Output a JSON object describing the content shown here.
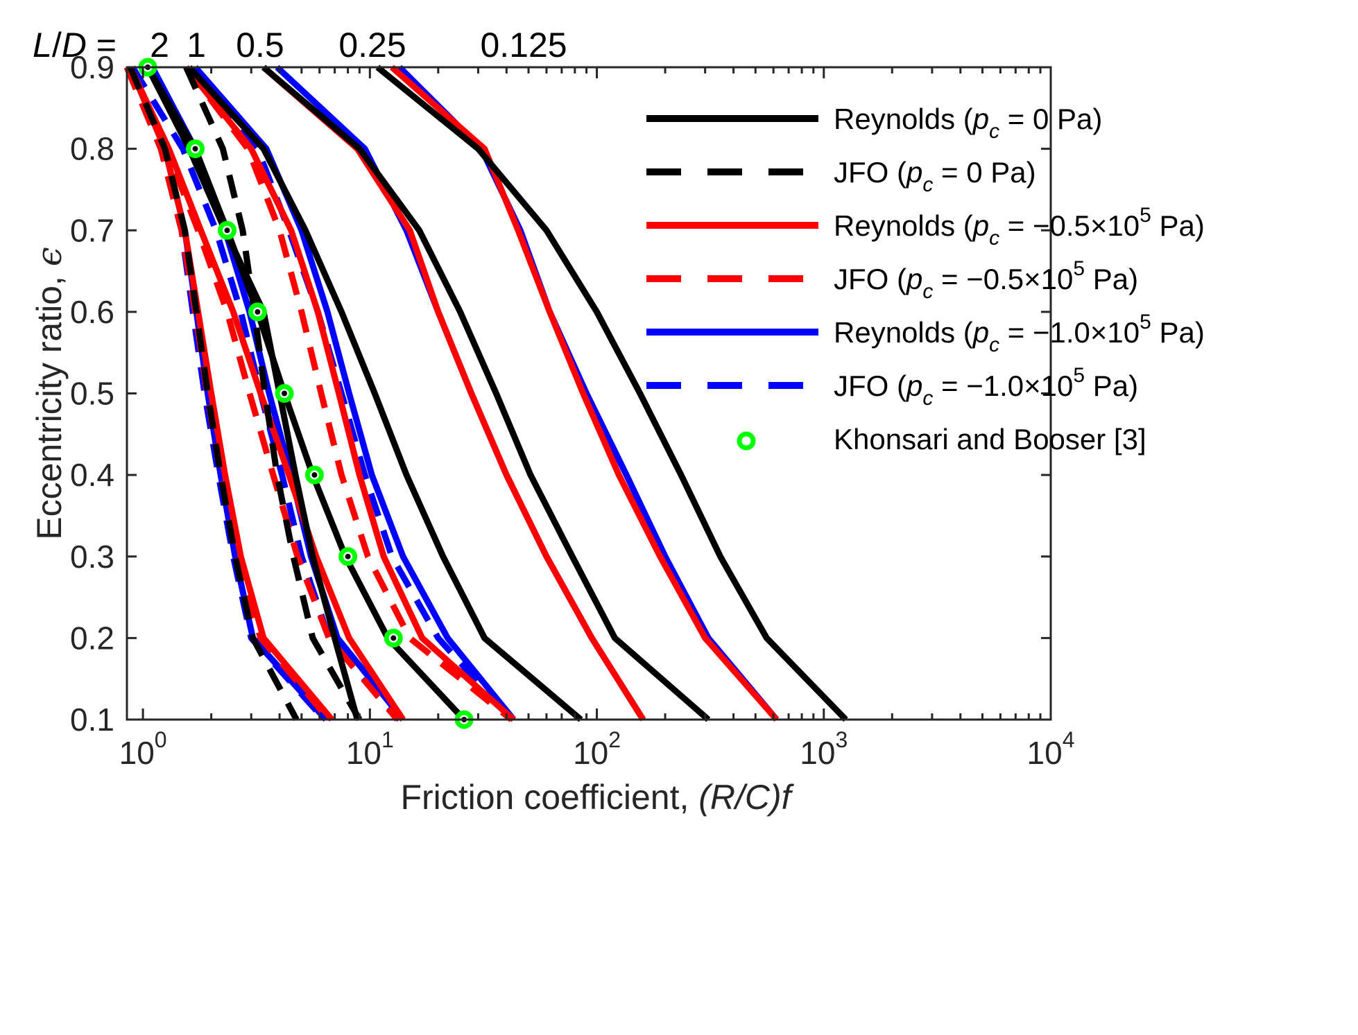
{
  "chart_data": {
    "type": "line",
    "xscale": "log",
    "xlim": [
      0.85,
      10000
    ],
    "ylim": [
      0.1,
      0.9
    ],
    "xlabel": "Friction coefficient, ",
    "xlabel_italic": "(R/C)f",
    "ylabel": "Eccentricity ratio, ",
    "ylabel_symbol": "ϵ",
    "x_tick_labels": [
      {
        "base": "10",
        "exp": "0",
        "value": 1
      },
      {
        "base": "10",
        "exp": "1",
        "value": 10
      },
      {
        "base": "10",
        "exp": "2",
        "value": 100
      },
      {
        "base": "10",
        "exp": "3",
        "value": 1000
      },
      {
        "base": "10",
        "exp": "4",
        "value": 10000
      }
    ],
    "y_ticks": [
      0.1,
      0.2,
      0.3,
      0.4,
      0.5,
      0.6,
      0.7,
      0.8,
      0.9
    ],
    "y_tick_labels": [
      "0.1",
      "0.2",
      "0.3",
      "0.4",
      "0.5",
      "0.6",
      "0.7",
      "0.8",
      "0.9"
    ],
    "top_labels": {
      "prefix_italic_1": "L",
      "prefix_sep": "/",
      "prefix_italic_2": "D",
      "prefix_eq": " = ",
      "values": [
        {
          "text": "2",
          "ld": 2
        },
        {
          "text": "1",
          "ld": 1
        },
        {
          "text": "0.5",
          "ld": 0.5
        },
        {
          "text": "0.25",
          "ld": 0.25
        },
        {
          "text": "0.125",
          "ld": 0.125
        }
      ]
    },
    "eps": [
      0.9,
      0.8,
      0.7,
      0.6,
      0.5,
      0.4,
      0.3,
      0.2,
      0.1
    ],
    "series": [
      {
        "name": "Reynolds (pc = 0 Pa)",
        "color": "#000000",
        "dashed": false,
        "ld": 2,
        "x": [
          1.05,
          1.6,
          2.3,
          3.4,
          4.0,
          4.7,
          5.6,
          7.0,
          8.8
        ]
      },
      {
        "name": "Reynolds (pc = 0 Pa)",
        "color": "#000000",
        "dashed": false,
        "ld": 1,
        "x": [
          1.05,
          1.7,
          2.35,
          3.2,
          4.2,
          5.6,
          7.8,
          12.0,
          26.0
        ]
      },
      {
        "name": "Reynolds (pc = 0 Pa)",
        "color": "#000000",
        "dashed": false,
        "ld": 0.5,
        "x": [
          1.6,
          3.4,
          5.2,
          7.5,
          10.5,
          14.5,
          21.0,
          32.0,
          85.0
        ]
      },
      {
        "name": "Reynolds (pc = 0 Pa)",
        "color": "#000000",
        "dashed": false,
        "ld": 0.25,
        "x": [
          3.4,
          9.0,
          16.5,
          25.0,
          36.0,
          51.0,
          78.0,
          120.0,
          310.0
        ]
      },
      {
        "name": "Reynolds (pc = 0 Pa)",
        "color": "#000000",
        "dashed": false,
        "ld": 0.125,
        "x": [
          10.8,
          30.0,
          60.0,
          100.0,
          155.0,
          235.0,
          350.0,
          560.0,
          1250.0
        ]
      },
      {
        "name": "JFO (pc = 0 Pa)",
        "color": "#000000",
        "dashed": true,
        "ld": 2,
        "x": [
          0.88,
          1.25,
          1.53,
          1.72,
          1.93,
          2.2,
          2.55,
          3.05,
          4.75
        ]
      },
      {
        "name": "JFO (pc = 0 Pa)",
        "color": "#000000",
        "dashed": true,
        "ld": 0.5,
        "x": [
          1.55,
          2.25,
          2.75,
          3.1,
          3.45,
          3.9,
          4.6,
          5.6,
          9.0
        ]
      },
      {
        "name": "Reynolds (pc = −0.5×10^5 Pa)",
        "color": "#ff0000",
        "dashed": false,
        "ld": 2,
        "x": [
          0.88,
          1.25,
          1.53,
          1.75,
          2.0,
          2.3,
          2.7,
          3.4,
          6.8
        ]
      },
      {
        "name": "Reynolds (pc = −0.5×10^5 Pa)",
        "color": "#ff0000",
        "dashed": false,
        "ld": 1,
        "x": [
          0.88,
          1.3,
          1.8,
          2.5,
          3.3,
          4.4,
          5.8,
          8.1,
          14.0
        ]
      },
      {
        "name": "Reynolds (pc = −0.5×10^5 Pa)",
        "color": "#ff0000",
        "dashed": false,
        "ld": 0.5,
        "x": [
          1.55,
          3.0,
          4.5,
          5.9,
          7.3,
          9.0,
          11.5,
          17.0,
          43.0
        ]
      },
      {
        "name": "Reynolds (pc = −0.5×10^5 Pa)",
        "color": "#ff0000",
        "dashed": false,
        "ld": 0.25,
        "x": [
          3.4,
          8.8,
          15.0,
          20.0,
          28.0,
          40.0,
          60.0,
          95.0,
          160.0
        ]
      },
      {
        "name": "Reynolds (pc = −0.5×10^5 Pa)",
        "color": "#ff0000",
        "dashed": false,
        "ld": 0.125,
        "x": [
          12.5,
          32.0,
          45.0,
          62.0,
          87.0,
          125.0,
          190.0,
          300.0,
          620.0
        ]
      },
      {
        "name": "JFO (pc = −0.5×10^5 Pa)",
        "color": "#ff0000",
        "dashed": true,
        "ld": 2,
        "x": [
          0.85,
          1.2,
          1.48,
          1.7,
          1.92,
          2.2,
          2.6,
          3.3,
          6.6
        ]
      },
      {
        "name": "JFO (pc = −0.5×10^5 Pa)",
        "color": "#ff0000",
        "dashed": true,
        "ld": 1,
        "x": [
          0.85,
          1.27,
          1.75,
          2.35,
          2.95,
          3.75,
          4.8,
          6.6,
          13.2
        ]
      },
      {
        "name": "JFO (pc = −0.5×10^5 Pa)",
        "color": "#ff0000",
        "dashed": true,
        "ld": 0.5,
        "x": [
          1.55,
          2.9,
          4.0,
          5.0,
          6.1,
          7.5,
          9.8,
          15.0,
          42.0
        ]
      },
      {
        "name": "Reynolds (pc = −1.0×10^5 Pa)",
        "color": "#0000ff",
        "dashed": false,
        "ld": 2,
        "x": [
          0.88,
          1.25,
          1.53,
          1.72,
          1.93,
          2.2,
          2.55,
          3.05,
          6.4
        ]
      },
      {
        "name": "Reynolds (pc = −1.0×10^5 Pa)",
        "color": "#0000ff",
        "dashed": false,
        "ld": 1,
        "x": [
          1.1,
          1.7,
          2.3,
          2.95,
          3.6,
          4.5,
          5.5,
          7.2,
          14.0
        ]
      },
      {
        "name": "Reynolds (pc = −1.0×10^5 Pa)",
        "color": "#0000ff",
        "dashed": false,
        "ld": 0.5,
        "x": [
          1.7,
          3.5,
          5.0,
          6.5,
          8.1,
          10.2,
          14.0,
          22.0,
          43.0
        ]
      },
      {
        "name": "Reynolds (pc = −1.0×10^5 Pa)",
        "color": "#0000ff",
        "dashed": false,
        "ld": 0.25,
        "x": [
          3.9,
          9.5,
          14.5,
          20.0,
          28.0,
          40.0,
          60.0,
          95.0,
          160.0
        ]
      },
      {
        "name": "Reynolds (pc = −1.0×10^5 Pa)",
        "color": "#0000ff",
        "dashed": false,
        "ld": 0.125,
        "x": [
          13.5,
          31.0,
          46.0,
          62.0,
          90.0,
          135.0,
          200.0,
          310.0,
          620.0
        ]
      },
      {
        "name": "JFO (pc = −1.0×10^5 Pa)",
        "color": "#0000ff",
        "dashed": true,
        "ld": 2,
        "x": [
          0.85,
          1.2,
          1.48,
          1.66,
          1.87,
          2.15,
          2.5,
          3.0,
          6.3
        ]
      },
      {
        "name": "JFO (pc = −1.0×10^5 Pa)",
        "color": "#0000ff",
        "dashed": true,
        "ld": 1,
        "x": [
          0.9,
          1.5,
          2.1,
          2.7,
          3.3,
          4.1,
          5.0,
          6.6,
          13.5
        ]
      },
      {
        "name": "JFO (pc = −1.0×10^5 Pa)",
        "color": "#0000ff",
        "dashed": true,
        "ld": 0.5,
        "x": [
          1.7,
          3.2,
          4.4,
          5.9,
          7.5,
          9.5,
          12.5,
          20.0,
          42.0
        ]
      }
    ],
    "reference_points": {
      "name": "Khonsari and Booser [3]",
      "marker_color": "#00ff00",
      "x": [
        1.05,
        1.7,
        2.35,
        3.2,
        4.2,
        5.7,
        8.0,
        12.7,
        26.0
      ],
      "y": [
        0.9,
        0.8,
        0.7,
        0.6,
        0.5,
        0.4,
        0.3,
        0.2,
        0.1
      ]
    },
    "legend": {
      "placement": "top-right",
      "entries": [
        {
          "prefix": "Reynolds (",
          "sym": "p",
          "sub": "c",
          "rest": " = 0 Pa)",
          "sup": "",
          "tail": "",
          "color": "#000000",
          "style": "solid"
        },
        {
          "prefix": "JFO (",
          "sym": "p",
          "sub": "c",
          "rest": " = 0 Pa)",
          "sup": "",
          "tail": "",
          "color": "#000000",
          "style": "dashed"
        },
        {
          "prefix": "Reynolds (",
          "sym": "p",
          "sub": "c",
          "rest": " = −0.5×10",
          "sup": "5",
          "tail": " Pa)",
          "color": "#ff0000",
          "style": "solid"
        },
        {
          "prefix": "JFO (",
          "sym": "p",
          "sub": "c",
          "rest": " = −0.5×10",
          "sup": "5",
          "tail": " Pa)",
          "color": "#ff0000",
          "style": "dashed"
        },
        {
          "prefix": "Reynolds (",
          "sym": "p",
          "sub": "c",
          "rest": " = −1.0×10",
          "sup": "5",
          "tail": " Pa)",
          "color": "#0000ff",
          "style": "solid"
        },
        {
          "prefix": "JFO (",
          "sym": "p",
          "sub": "c",
          "rest": " = −1.0×10",
          "sup": "5",
          "tail": " Pa)",
          "color": "#0000ff",
          "style": "dashed"
        },
        {
          "prefix": "Khonsari and Booser [3]",
          "sym": "",
          "sub": "",
          "rest": "",
          "sup": "",
          "tail": "",
          "color": "#00ff00",
          "style": "marker"
        }
      ]
    }
  }
}
